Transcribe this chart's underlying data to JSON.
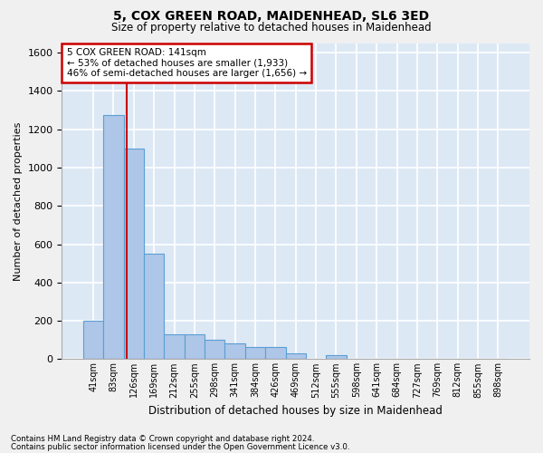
{
  "title": "5, COX GREEN ROAD, MAIDENHEAD, SL6 3ED",
  "subtitle": "Size of property relative to detached houses in Maidenhead",
  "xlabel": "Distribution of detached houses by size in Maidenhead",
  "ylabel": "Number of detached properties",
  "footnote1": "Contains HM Land Registry data © Crown copyright and database right 2024.",
  "footnote2": "Contains public sector information licensed under the Open Government Licence v3.0.",
  "bin_labels": [
    "41sqm",
    "83sqm",
    "126sqm",
    "169sqm",
    "212sqm",
    "255sqm",
    "298sqm",
    "341sqm",
    "384sqm",
    "426sqm",
    "469sqm",
    "512sqm",
    "555sqm",
    "598sqm",
    "641sqm",
    "684sqm",
    "727sqm",
    "769sqm",
    "812sqm",
    "855sqm",
    "898sqm"
  ],
  "values": [
    200,
    1275,
    1100,
    550,
    130,
    130,
    100,
    80,
    65,
    65,
    30,
    0,
    20,
    0,
    0,
    0,
    0,
    0,
    0,
    0,
    0
  ],
  "bar_color": "#aec6e8",
  "bar_edge_color": "#5a9fd4",
  "bg_color": "#dde8f5",
  "grid_color": "#ffffff",
  "annotation_text1": "5 COX GREEN ROAD: 141sqm",
  "annotation_text2": "← 53% of detached houses are smaller (1,933)",
  "annotation_text3": "46% of semi-detached houses are larger (1,656) →",
  "annotation_box_color": "#ffffff",
  "annotation_box_edge": "#cc0000",
  "vline_color": "#cc0000",
  "vline_x": 1.67,
  "ylim": [
    0,
    1650
  ],
  "yticks": [
    0,
    200,
    400,
    600,
    800,
    1000,
    1200,
    1400,
    1600
  ]
}
